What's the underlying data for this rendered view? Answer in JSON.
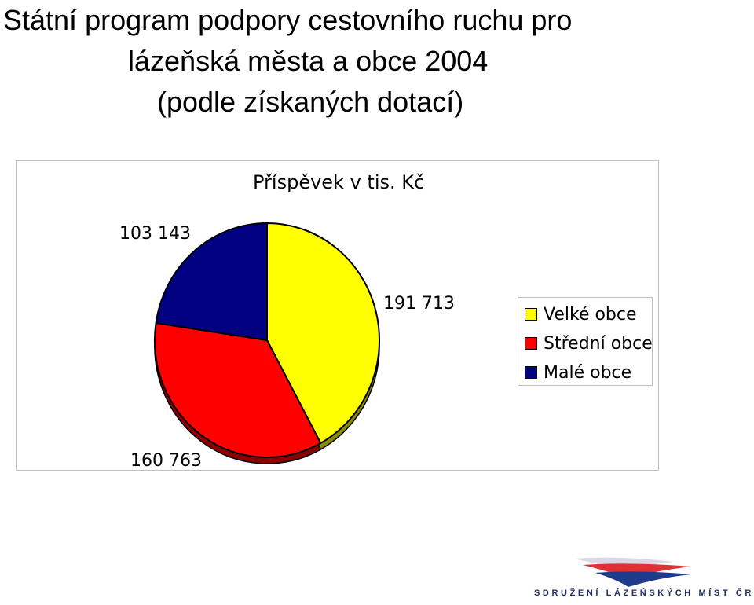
{
  "slide": {
    "title_lines": [
      "Státní program podpory cestovního ruchu pro",
      "lázeňská města a obce 2004",
      "(podle získaných dotací)"
    ]
  },
  "chart_data": {
    "type": "pie",
    "title": "Příspěvek v tis. Kč",
    "categories": [
      "Velké obce",
      "Střední obce",
      "Malé obce"
    ],
    "values": [
      191713,
      160763,
      103143
    ],
    "value_labels": [
      "191 713",
      "160 763",
      "103 143"
    ],
    "colors": [
      "#ffff00",
      "#ff0000",
      "#000080"
    ],
    "legend_position": "right"
  },
  "logo": {
    "text": "SDRUŽENÍ LÁZEŇSKÝCH MÍST ČR"
  }
}
